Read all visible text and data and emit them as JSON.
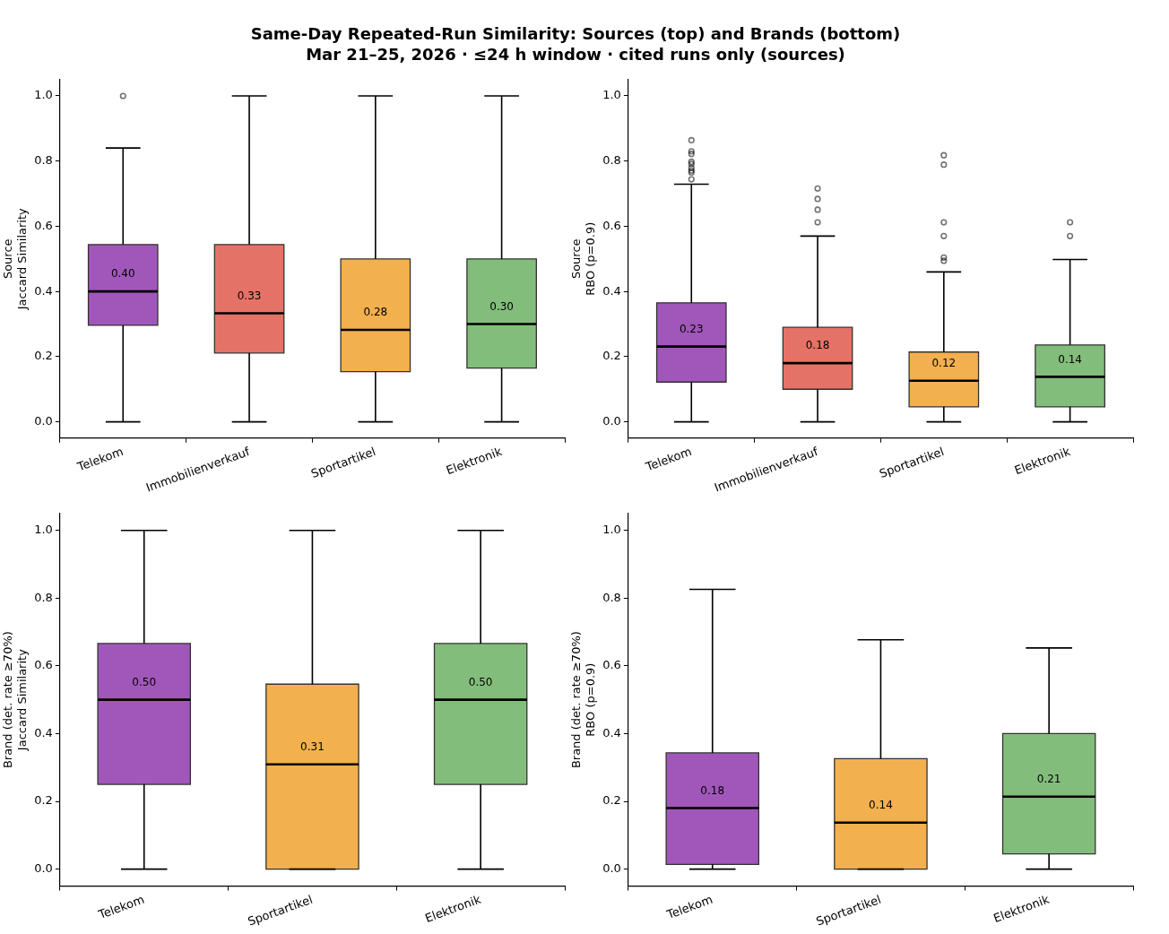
{
  "chart_data": [
    {
      "type": "box",
      "title": "Same-Day Repeated-Run Similarity: Sources (top) and Brands (bottom)",
      "subtitle": "Mar 21–25, 2026 · ≤24 h window · cited runs only (sources)",
      "ylabel": "Source\nJaccard Similarity",
      "categories": [
        "Telekom",
        "Immobilienverkauf",
        "Sportartikel",
        "Elektronik"
      ],
      "colors": [
        "#a157b9",
        "#e57266",
        "#f2b04e",
        "#83bd7b"
      ],
      "boxes": [
        {
          "low": 0,
          "q1": 0.296,
          "median": 0.4,
          "q3": 0.544,
          "high": 0.84,
          "outliers": [
            1.0
          ]
        },
        {
          "low": 0,
          "q1": 0.211,
          "median": 0.333,
          "q3": 0.544,
          "high": 1.0
        },
        {
          "low": 0,
          "q1": 0.154,
          "median": 0.282,
          "q3": 0.5,
          "high": 1.0
        },
        {
          "low": 0,
          "q1": 0.165,
          "median": 0.3,
          "q3": 0.5,
          "high": 1.0
        }
      ],
      "value_labels": [
        "0.40",
        "0.33",
        "0.28",
        "0.30"
      ],
      "ylim": [
        -0.05,
        1.05
      ],
      "yticks": [
        {
          "value": 0,
          "label": "0.0"
        },
        {
          "value": 0.2,
          "label": "0.2"
        },
        {
          "value": 0.4,
          "label": "0.4"
        },
        {
          "value": 0.6,
          "label": "0.6"
        },
        {
          "value": 0.8,
          "label": "0.8"
        },
        {
          "value": 1,
          "label": "1.0"
        }
      ]
    },
    {
      "type": "box",
      "ylabel": "Source\nRBO (p=0.9)",
      "categories": [
        "Telekom",
        "Immobilienverkauf",
        "Sportartikel",
        "Elektronik"
      ],
      "colors": [
        "#a157b9",
        "#e57266",
        "#f2b04e",
        "#83bd7b"
      ],
      "boxes": [
        {
          "low": 0,
          "q1": 0.122,
          "median": 0.231,
          "q3": 0.365,
          "high": 0.729,
          "outliers": [
            0.864,
            0.83,
            0.822,
            0.798,
            0.791,
            0.779,
            0.771,
            0.765,
            0.744
          ]
        },
        {
          "low": 0,
          "q1": 0.1,
          "median": 0.18,
          "q3": 0.29,
          "high": 0.57,
          "outliers": [
            0.716,
            0.684,
            0.651,
            0.612
          ]
        },
        {
          "low": 0,
          "q1": 0.046,
          "median": 0.126,
          "q3": 0.214,
          "high": 0.46,
          "outliers": [
            0.818,
            0.789,
            0.612,
            0.57,
            0.504,
            0.494
          ]
        },
        {
          "low": 0,
          "q1": 0.046,
          "median": 0.138,
          "q3": 0.236,
          "high": 0.498,
          "outliers": [
            0.612,
            0.57
          ]
        }
      ],
      "value_labels": [
        "0.23",
        "0.18",
        "0.12",
        "0.14"
      ],
      "ylim": [
        -0.05,
        1.05
      ],
      "yticks": [
        {
          "value": 0,
          "label": "0.0"
        },
        {
          "value": 0.2,
          "label": "0.2"
        },
        {
          "value": 0.4,
          "label": "0.4"
        },
        {
          "value": 0.6,
          "label": "0.6"
        },
        {
          "value": 0.8,
          "label": "0.8"
        },
        {
          "value": 1,
          "label": "1.0"
        }
      ]
    },
    {
      "type": "box",
      "ylabel": "Brand (det. rate ≥70%)\nJaccard Similarity",
      "categories": [
        "Telekom",
        "Sportartikel",
        "Elektronik"
      ],
      "colors": [
        "#a157b9",
        "#f2b04e",
        "#83bd7b"
      ],
      "boxes": [
        {
          "low": 0,
          "q1": 0.25,
          "median": 0.5,
          "q3": 0.666,
          "high": 1.0
        },
        {
          "low": 0,
          "q1": 0,
          "median": 0.309,
          "q3": 0.546,
          "high": 1.0
        },
        {
          "low": 0,
          "q1": 0.25,
          "median": 0.5,
          "q3": 0.666,
          "high": 1.0
        }
      ],
      "value_labels": [
        "0.50",
        "0.31",
        "0.50"
      ],
      "ylim": [
        -0.05,
        1.05
      ],
      "yticks": [
        {
          "value": 0,
          "label": "0.0"
        },
        {
          "value": 0.2,
          "label": "0.2"
        },
        {
          "value": 0.4,
          "label": "0.4"
        },
        {
          "value": 0.6,
          "label": "0.6"
        },
        {
          "value": 0.8,
          "label": "0.8"
        },
        {
          "value": 1,
          "label": "1.0"
        }
      ]
    },
    {
      "type": "box",
      "ylabel": "Brand (det. rate ≥70%)\nRBO (p=0.9)",
      "categories": [
        "Telekom",
        "Sportartikel",
        "Elektronik"
      ],
      "colors": [
        "#a157b9",
        "#f2b04e",
        "#83bd7b"
      ],
      "boxes": [
        {
          "low": 0,
          "q1": 0.014,
          "median": 0.18,
          "q3": 0.343,
          "high": 0.826
        },
        {
          "low": 0,
          "q1": 0,
          "median": 0.137,
          "q3": 0.326,
          "high": 0.677
        },
        {
          "low": 0,
          "q1": 0.045,
          "median": 0.214,
          "q3": 0.4,
          "high": 0.653
        }
      ],
      "value_labels": [
        "0.18",
        "0.14",
        "0.21"
      ],
      "ylim": [
        -0.05,
        1.05
      ],
      "yticks": [
        {
          "value": 0,
          "label": "0.0"
        },
        {
          "value": 0.2,
          "label": "0.2"
        },
        {
          "value": 0.4,
          "label": "0.4"
        },
        {
          "value": 0.6,
          "label": "0.6"
        },
        {
          "value": 0.8,
          "label": "0.8"
        },
        {
          "value": 1,
          "label": "1.0"
        }
      ]
    }
  ]
}
